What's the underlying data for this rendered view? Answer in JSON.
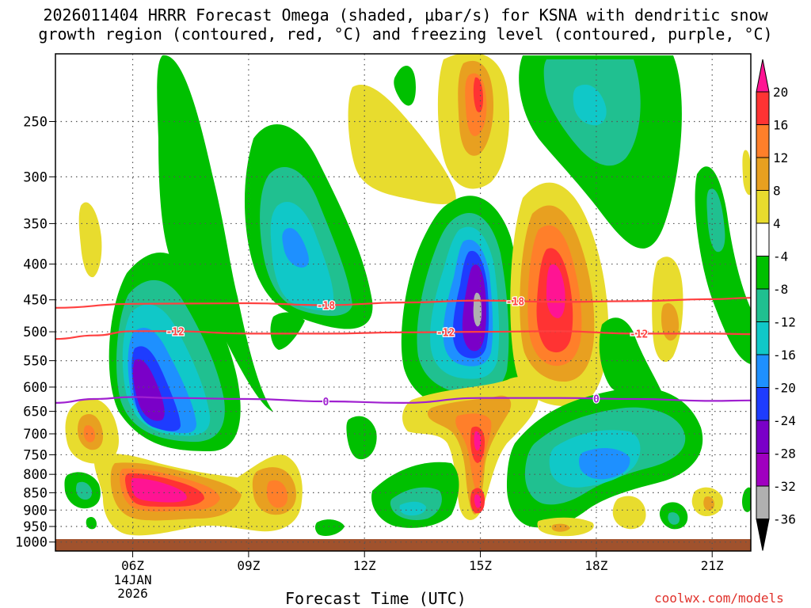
{
  "title_line1": "2026011404 HRRR Forecast Omega (shaded, μbar/s) for KSNA with dendritic snow",
  "title_line2": "growth region (contoured, red, °C) and freezing level (contoured, purple, °C)",
  "credit": "coolwx.com/models",
  "chart_data": {
    "type": "contour",
    "title": "2026011404 HRRR Forecast Omega (shaded, μbar/s) for KSNA with dendritic snow growth region (contoured, red, °C) and freezing level (contoured, purple, °C)",
    "xlabel": "Forecast Time (UTC)",
    "ylabel": "",
    "x_ticks": [
      {
        "hour": 6,
        "label": "06Z",
        "sub1": "14JAN",
        "sub2": "2026"
      },
      {
        "hour": 9,
        "label": "09Z"
      },
      {
        "hour": 12,
        "label": "12Z"
      },
      {
        "hour": 15,
        "label": "15Z"
      },
      {
        "hour": 18,
        "label": "18Z"
      },
      {
        "hour": 21,
        "label": "21Z"
      }
    ],
    "x_range_hours": [
      4,
      22
    ],
    "y_scale": "log-pressure",
    "y_range_hPa": [
      1030,
      200
    ],
    "y_ticks": [
      250,
      300,
      350,
      400,
      450,
      500,
      550,
      600,
      650,
      700,
      750,
      800,
      850,
      900,
      950,
      1000
    ],
    "colorbar": {
      "labels": [
        "20",
        "16",
        "12",
        "8",
        "4",
        "-4",
        "-8",
        "-12",
        "-16",
        "-20",
        "-24",
        "-28",
        "-32",
        "-36"
      ],
      "colors": [
        "#ff1493",
        "#ff3333",
        "#ff7f2a",
        "#e8a020",
        "#e8dc2e",
        "#ffffff",
        "#00c000",
        "#20c090",
        "#10c8c8",
        "#1e90ff",
        "#1e3cff",
        "#7a00c8",
        "#a000c0",
        "#b0b0b0",
        "#000000"
      ]
    },
    "omega_features": [
      {
        "hour": 6.1,
        "p": 600,
        "value": -28
      },
      {
        "hour": 9.9,
        "p": 390,
        "value": -16
      },
      {
        "hour": 15.0,
        "p": 460,
        "value": -32
      },
      {
        "hour": 16.9,
        "p": 460,
        "value": 16
      },
      {
        "hour": 15.0,
        "p": 210,
        "value": 16
      },
      {
        "hour": 6.6,
        "p": 880,
        "value": 20
      },
      {
        "hour": 15.0,
        "p": 730,
        "value": 12
      },
      {
        "hour": 17.9,
        "p": 770,
        "value": -16
      },
      {
        "hour": 18.8,
        "p": 230,
        "value": -12
      }
    ],
    "contours": [
      {
        "name": "",
        "label": "-18",
        "color": "#ff4040",
        "points": [
          [
            4,
            462
          ],
          [
            6,
            456
          ],
          [
            9,
            455
          ],
          [
            11,
            458
          ],
          [
            13,
            454
          ],
          [
            15,
            451
          ],
          [
            17,
            453
          ],
          [
            19,
            452
          ],
          [
            21,
            449
          ],
          [
            22,
            447
          ]
        ],
        "label_hours": [
          11,
          15.9
        ]
      },
      {
        "name": "",
        "label": "-12",
        "color": "#ff4040",
        "points": [
          [
            4,
            512
          ],
          [
            5,
            506
          ],
          [
            6,
            499
          ],
          [
            7,
            499
          ],
          [
            9,
            503
          ],
          [
            11,
            503
          ],
          [
            13,
            501
          ],
          [
            15,
            500
          ],
          [
            17,
            499
          ],
          [
            19,
            503
          ],
          [
            21,
            503
          ],
          [
            22,
            504
          ]
        ],
        "label_hours": [
          7.1,
          14.1,
          19.1
        ]
      },
      {
        "name": "",
        "label": "0",
        "color": "#a020d0",
        "points": [
          [
            4,
            632
          ],
          [
            5,
            624
          ],
          [
            6,
            620
          ],
          [
            7,
            622
          ],
          [
            9,
            624
          ],
          [
            11,
            629
          ],
          [
            13,
            632
          ],
          [
            15,
            622
          ],
          [
            17,
            622
          ],
          [
            19,
            624
          ],
          [
            21,
            628
          ],
          [
            22,
            627
          ]
        ],
        "label_hours": [
          11,
          18
        ]
      }
    ]
  }
}
